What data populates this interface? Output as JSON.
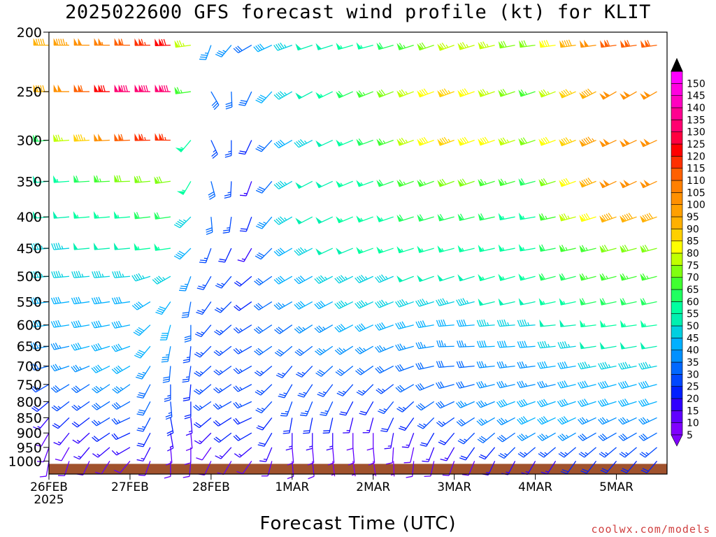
{
  "chart_data": {
    "type": "wind-barb-profile",
    "title": "2025022600 GFS forecast wind profile (kt) for KLIT",
    "xlabel": "Forecast Time (UTC)",
    "ylabel": "",
    "credit": "coolwx.com/models",
    "x_ticks": [
      {
        "label": "26FEB",
        "sublabel": "2025",
        "hour": 0
      },
      {
        "label": "27FEB",
        "sublabel": "",
        "hour": 24
      },
      {
        "label": "28FEB",
        "sublabel": "",
        "hour": 48
      },
      {
        "label": "1MAR",
        "sublabel": "",
        "hour": 72
      },
      {
        "label": "2MAR",
        "sublabel": "",
        "hour": 96
      },
      {
        "label": "3MAR",
        "sublabel": "",
        "hour": 120
      },
      {
        "label": "4MAR",
        "sublabel": "",
        "hour": 144
      },
      {
        "label": "5MAR",
        "sublabel": "",
        "hour": 168
      }
    ],
    "xlim": [
      0,
      183
    ],
    "y_ticks": [
      200,
      250,
      300,
      350,
      400,
      450,
      500,
      550,
      600,
      650,
      700,
      750,
      800,
      850,
      900,
      950,
      1000
    ],
    "ylim": [
      1050,
      200
    ],
    "y_scale": "log",
    "levels_hpa": [
      1000,
      975,
      950,
      925,
      900,
      875,
      850,
      825,
      800,
      775,
      750,
      700,
      650,
      600,
      550,
      500,
      450,
      400,
      350,
      300,
      250,
      210
    ],
    "colorbar": {
      "values": [
        5,
        10,
        15,
        20,
        25,
        30,
        35,
        40,
        45,
        50,
        55,
        60,
        65,
        70,
        75,
        80,
        85,
        90,
        95,
        100,
        105,
        110,
        115,
        120,
        125,
        130,
        135,
        140,
        145,
        150
      ],
      "labels": [
        "5",
        "10",
        "15",
        "20",
        "25",
        "30",
        "35",
        "40",
        "45",
        "50",
        "55",
        "60",
        "65",
        "70",
        "75",
        "80",
        "85",
        "90",
        "95",
        "100",
        "105",
        "110",
        "115",
        "120",
        "125",
        "130",
        "135",
        "140",
        "145",
        "150"
      ],
      "colors": [
        "#8000ff",
        "#6000ff",
        "#3000ff",
        "#0020ff",
        "#0048ff",
        "#0068ff",
        "#0090ff",
        "#00b0ff",
        "#00d0e0",
        "#00f0b0",
        "#00ffa0",
        "#20ff60",
        "#40ff30",
        "#80ff10",
        "#c0ff00",
        "#ffff00",
        "#ffd000",
        "#ffb000",
        "#ffa000",
        "#ff9000",
        "#ff8000",
        "#ff6000",
        "#ff3000",
        "#ff0000",
        "#ff0040",
        "#ff0070",
        "#ff0090",
        "#ff00c0",
        "#ff00e0",
        "#ff00ff"
      ]
    },
    "ground_color": "#a0522d",
    "series_by_level": [
      {
        "level": 210,
        "keyframes": [
          [
            0,
            90,
            270
          ],
          [
            24,
            110,
            270
          ],
          [
            36,
            120,
            268
          ],
          [
            42,
            75,
            262
          ],
          [
            48,
            35,
            200
          ],
          [
            60,
            30,
            240
          ],
          [
            72,
            45,
            250
          ],
          [
            96,
            55,
            255
          ],
          [
            120,
            75,
            250
          ],
          [
            144,
            70,
            262
          ],
          [
            168,
            110,
            262
          ],
          [
            183,
            110,
            262
          ]
        ]
      },
      {
        "level": 250,
        "keyframes": [
          [
            0,
            90,
            270
          ],
          [
            24,
            130,
            270
          ],
          [
            36,
            130,
            270
          ],
          [
            42,
            65,
            262
          ],
          [
            48,
            30,
            150
          ],
          [
            60,
            30,
            205
          ],
          [
            72,
            45,
            240
          ],
          [
            96,
            65,
            248
          ],
          [
            120,
            85,
            250
          ],
          [
            144,
            65,
            252
          ],
          [
            168,
            100,
            240
          ],
          [
            183,
            100,
            240
          ]
        ]
      },
      {
        "level": 300,
        "keyframes": [
          [
            0,
            60,
            265
          ],
          [
            24,
            110,
            268
          ],
          [
            36,
            115,
            270
          ],
          [
            42,
            55,
            220
          ],
          [
            48,
            25,
            155
          ],
          [
            60,
            20,
            205
          ],
          [
            72,
            40,
            240
          ],
          [
            96,
            60,
            250
          ],
          [
            120,
            85,
            250
          ],
          [
            144,
            70,
            252
          ],
          [
            168,
            100,
            245
          ],
          [
            183,
            100,
            245
          ]
        ]
      },
      {
        "level": 350,
        "keyframes": [
          [
            0,
            50,
            265
          ],
          [
            24,
            70,
            268
          ],
          [
            36,
            70,
            262
          ],
          [
            42,
            55,
            210
          ],
          [
            48,
            30,
            165
          ],
          [
            60,
            15,
            200
          ],
          [
            72,
            45,
            240
          ],
          [
            96,
            55,
            250
          ],
          [
            120,
            70,
            250
          ],
          [
            144,
            60,
            255
          ],
          [
            168,
            100,
            245
          ],
          [
            183,
            100,
            245
          ]
        ]
      },
      {
        "level": 400,
        "keyframes": [
          [
            0,
            50,
            265
          ],
          [
            24,
            55,
            265
          ],
          [
            36,
            60,
            262
          ],
          [
            42,
            45,
            225
          ],
          [
            48,
            30,
            175
          ],
          [
            60,
            20,
            200
          ],
          [
            72,
            45,
            240
          ],
          [
            96,
            55,
            250
          ],
          [
            120,
            60,
            255
          ],
          [
            144,
            55,
            260
          ],
          [
            168,
            90,
            250
          ],
          [
            183,
            90,
            250
          ]
        ]
      },
      {
        "level": 450,
        "keyframes": [
          [
            0,
            45,
            265
          ],
          [
            24,
            50,
            265
          ],
          [
            36,
            55,
            262
          ],
          [
            42,
            40,
            225
          ],
          [
            48,
            25,
            200
          ],
          [
            60,
            15,
            210
          ],
          [
            72,
            40,
            240
          ],
          [
            96,
            55,
            250
          ],
          [
            120,
            55,
            255
          ],
          [
            144,
            55,
            260
          ],
          [
            168,
            70,
            255
          ],
          [
            183,
            70,
            255
          ]
        ]
      },
      {
        "level": 500,
        "keyframes": [
          [
            0,
            45,
            265
          ],
          [
            24,
            45,
            265
          ],
          [
            36,
            45,
            240
          ],
          [
            42,
            35,
            200
          ],
          [
            48,
            25,
            210
          ],
          [
            60,
            20,
            230
          ],
          [
            72,
            40,
            240
          ],
          [
            96,
            45,
            245
          ],
          [
            120,
            50,
            252
          ],
          [
            144,
            55,
            255
          ],
          [
            168,
            65,
            255
          ],
          [
            183,
            65,
            255
          ]
        ]
      },
      {
        "level": 550,
        "keyframes": [
          [
            0,
            40,
            262
          ],
          [
            24,
            40,
            262
          ],
          [
            36,
            40,
            215
          ],
          [
            42,
            30,
            190
          ],
          [
            48,
            25,
            215
          ],
          [
            60,
            20,
            235
          ],
          [
            72,
            35,
            240
          ],
          [
            96,
            45,
            245
          ],
          [
            120,
            45,
            255
          ],
          [
            144,
            50,
            258
          ],
          [
            168,
            60,
            258
          ],
          [
            183,
            60,
            258
          ]
        ]
      },
      {
        "level": 600,
        "keyframes": [
          [
            0,
            40,
            262
          ],
          [
            24,
            40,
            258
          ],
          [
            36,
            40,
            195
          ],
          [
            42,
            30,
            180
          ],
          [
            48,
            25,
            220
          ],
          [
            60,
            25,
            238
          ],
          [
            72,
            30,
            235
          ],
          [
            96,
            40,
            245
          ],
          [
            120,
            40,
            265
          ],
          [
            144,
            45,
            265
          ],
          [
            168,
            55,
            262
          ],
          [
            183,
            55,
            262
          ]
        ]
      },
      {
        "level": 650,
        "keyframes": [
          [
            0,
            35,
            260
          ],
          [
            24,
            40,
            250
          ],
          [
            36,
            35,
            190
          ],
          [
            42,
            25,
            185
          ],
          [
            48,
            25,
            225
          ],
          [
            60,
            25,
            240
          ],
          [
            72,
            30,
            230
          ],
          [
            96,
            35,
            240
          ],
          [
            120,
            35,
            268
          ],
          [
            144,
            40,
            265
          ],
          [
            168,
            50,
            260
          ],
          [
            183,
            50,
            260
          ]
        ]
      },
      {
        "level": 700,
        "keyframes": [
          [
            0,
            30,
            255
          ],
          [
            24,
            40,
            240
          ],
          [
            36,
            30,
            185
          ],
          [
            42,
            25,
            188
          ],
          [
            48,
            25,
            228
          ],
          [
            60,
            25,
            240
          ],
          [
            72,
            25,
            220
          ],
          [
            96,
            30,
            235
          ],
          [
            120,
            30,
            265
          ],
          [
            144,
            35,
            262
          ],
          [
            168,
            45,
            258
          ],
          [
            183,
            45,
            258
          ]
        ]
      },
      {
        "level": 750,
        "keyframes": [
          [
            0,
            25,
            240
          ],
          [
            24,
            35,
            235
          ],
          [
            36,
            25,
            180
          ],
          [
            42,
            20,
            185
          ],
          [
            48,
            25,
            230
          ],
          [
            60,
            25,
            242
          ],
          [
            72,
            25,
            210
          ],
          [
            96,
            25,
            225
          ],
          [
            120,
            30,
            255
          ],
          [
            144,
            35,
            258
          ],
          [
            168,
            40,
            255
          ],
          [
            183,
            40,
            255
          ]
        ]
      },
      {
        "level": 800,
        "keyframes": [
          [
            0,
            20,
            230
          ],
          [
            24,
            30,
            240
          ],
          [
            36,
            25,
            175
          ],
          [
            42,
            20,
            180
          ],
          [
            48,
            25,
            235
          ],
          [
            60,
            25,
            245
          ],
          [
            72,
            25,
            200
          ],
          [
            96,
            20,
            210
          ],
          [
            120,
            30,
            245
          ],
          [
            144,
            40,
            250
          ],
          [
            168,
            40,
            252
          ],
          [
            183,
            40,
            252
          ]
        ]
      },
      {
        "level": 850,
        "keyframes": [
          [
            0,
            15,
            220
          ],
          [
            24,
            25,
            245
          ],
          [
            36,
            20,
            170
          ],
          [
            42,
            15,
            175
          ],
          [
            48,
            20,
            230
          ],
          [
            60,
            20,
            245
          ],
          [
            72,
            20,
            190
          ],
          [
            96,
            15,
            195
          ],
          [
            120,
            25,
            235
          ],
          [
            144,
            40,
            245
          ],
          [
            168,
            35,
            245
          ],
          [
            183,
            35,
            245
          ]
        ]
      },
      {
        "level": 900,
        "keyframes": [
          [
            0,
            10,
            210
          ],
          [
            24,
            20,
            245
          ],
          [
            36,
            15,
            170
          ],
          [
            42,
            10,
            175
          ],
          [
            48,
            15,
            225
          ],
          [
            60,
            20,
            240
          ],
          [
            72,
            15,
            180
          ],
          [
            96,
            10,
            180
          ],
          [
            120,
            20,
            220
          ],
          [
            144,
            35,
            240
          ],
          [
            168,
            30,
            240
          ],
          [
            183,
            30,
            240
          ]
        ]
      },
      {
        "level": 950,
        "keyframes": [
          [
            0,
            10,
            200
          ],
          [
            24,
            15,
            240
          ],
          [
            36,
            10,
            175
          ],
          [
            42,
            10,
            180
          ],
          [
            48,
            10,
            215
          ],
          [
            60,
            15,
            230
          ],
          [
            72,
            10,
            175
          ],
          [
            96,
            8,
            175
          ],
          [
            120,
            15,
            210
          ],
          [
            144,
            25,
            230
          ],
          [
            168,
            25,
            230
          ],
          [
            183,
            25,
            230
          ]
        ]
      },
      {
        "level": 1000,
        "keyframes": [
          [
            0,
            8,
            190
          ],
          [
            24,
            10,
            220
          ],
          [
            36,
            8,
            180
          ],
          [
            42,
            8,
            185
          ],
          [
            48,
            8,
            205
          ],
          [
            60,
            10,
            215
          ],
          [
            72,
            8,
            175
          ],
          [
            96,
            6,
            170
          ],
          [
            120,
            10,
            200
          ],
          [
            144,
            15,
            210
          ],
          [
            168,
            20,
            220
          ],
          [
            183,
            20,
            220
          ]
        ]
      }
    ]
  }
}
